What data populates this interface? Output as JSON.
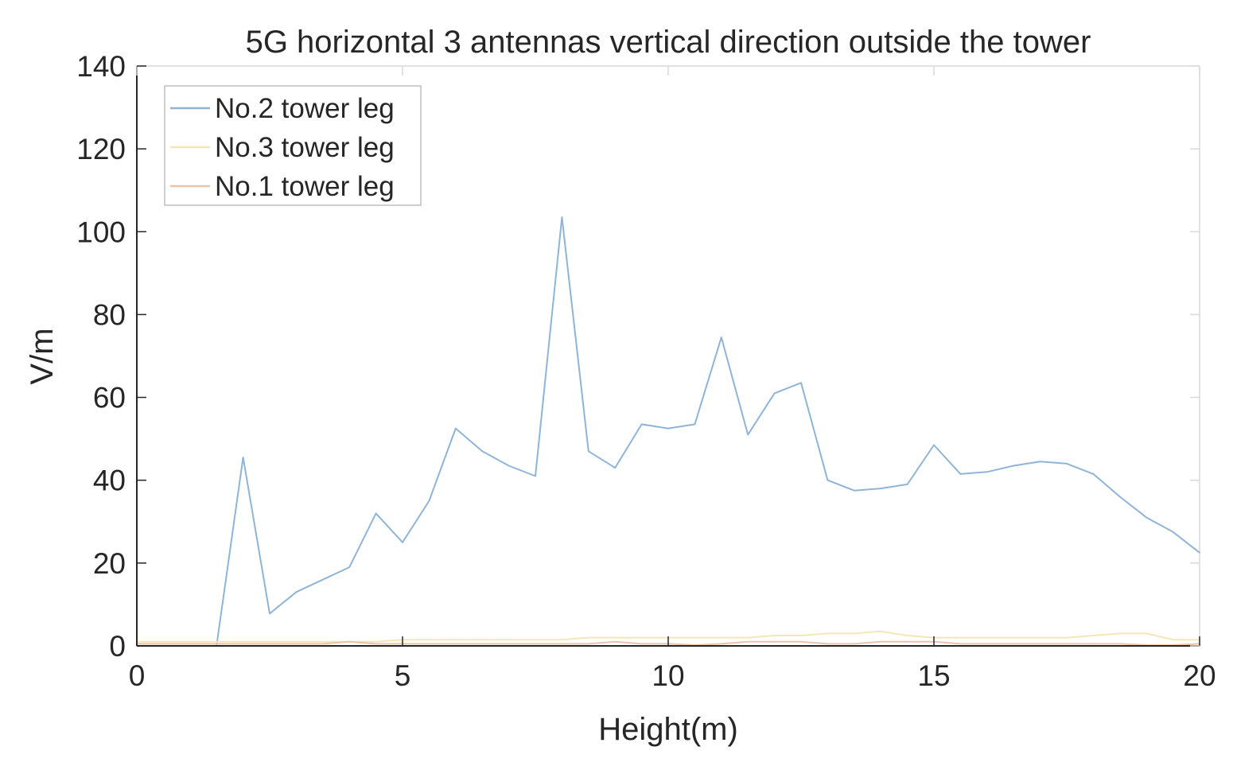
{
  "chart_data": {
    "type": "line",
    "title": "5G horizontal 3 antennas vertical direction outside the tower",
    "xlabel": "Height(m)",
    "ylabel": "V/m",
    "xlim": [
      0,
      20
    ],
    "ylim": [
      0,
      140
    ],
    "xticks": [
      "0",
      "5",
      "10",
      "15",
      "20"
    ],
    "yticks": [
      "0",
      "20",
      "40",
      "60",
      "80",
      "100",
      "120",
      "140"
    ],
    "grid": false,
    "legend_position": "top-left",
    "x": [
      0,
      0.5,
      1,
      1.5,
      2,
      2.5,
      3,
      3.5,
      4,
      4.5,
      5,
      5.5,
      6,
      6.5,
      7,
      7.5,
      8,
      8.5,
      9,
      9.5,
      10,
      10.5,
      11,
      11.5,
      12,
      12.5,
      13,
      13.5,
      14,
      14.5,
      15,
      15.5,
      16,
      16.5,
      17,
      17.5,
      18,
      18.5,
      19,
      19.5,
      20
    ],
    "series": [
      {
        "name": "No.2 tower leg",
        "color": "#8fb4d9",
        "values": [
          0,
          0,
          0,
          0,
          45.5,
          7.8,
          13,
          16,
          19,
          32,
          25,
          35,
          52.5,
          47,
          43.5,
          41,
          103.5,
          47,
          43,
          53.5,
          52.5,
          53.5,
          74.5,
          51,
          61,
          63.5,
          40,
          37.5,
          38,
          39,
          48.5,
          41.5,
          42,
          43.5,
          44.5,
          44,
          41.5,
          36,
          31,
          27.5,
          22.5
        ]
      },
      {
        "name": "No.3 tower leg",
        "color": "#f5e6b8",
        "values": [
          1,
          1,
          1,
          1,
          1,
          1,
          1,
          1,
          1,
          1,
          1.5,
          1.5,
          1.5,
          1.5,
          1.5,
          1.5,
          1.5,
          2,
          2,
          2,
          2,
          2,
          2,
          2,
          2.5,
          2.5,
          3,
          3,
          3.5,
          2.5,
          2,
          2,
          2,
          2,
          2,
          2,
          2.5,
          3,
          3,
          1.5,
          1.5
        ]
      },
      {
        "name": "No.1 tower leg",
        "color": "#e8c4a8",
        "values": [
          0.5,
          0.5,
          0.5,
          0.5,
          0.5,
          0.5,
          0.5,
          0.5,
          1,
          0.5,
          0.5,
          0.5,
          0.5,
          0.5,
          0.5,
          0.5,
          0.5,
          0.5,
          1,
          0.5,
          0.5,
          0.2,
          0.5,
          1,
          1,
          1,
          0.5,
          0.5,
          1,
          1,
          1,
          0.5,
          0.5,
          0.5,
          0.5,
          0.5,
          0.5,
          0.5,
          0.2,
          0.2,
          0.5
        ]
      }
    ]
  },
  "colors": {
    "axis": "#262626",
    "frame": "#d9d9d9",
    "legend_border": "#bfbfbf",
    "background": "#ffffff"
  }
}
